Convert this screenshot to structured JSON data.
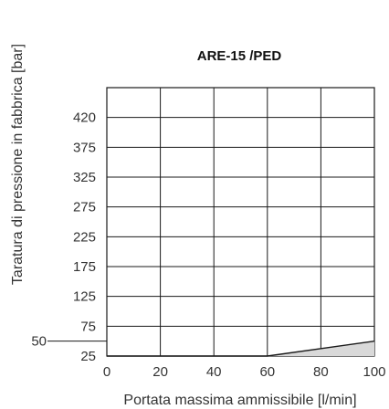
{
  "chart_data": {
    "type": "area",
    "title": "ARE-15 /PED",
    "xlabel": "Portata massima ammissibile [l/min]",
    "ylabel": "Taratura di pressione in fabbrica [bar]",
    "x_ticks": [
      "0",
      "20",
      "40",
      "60",
      "80",
      "100"
    ],
    "y_ticks": [
      "25",
      "75",
      "125",
      "175",
      "225",
      "275",
      "325",
      "375",
      "420"
    ],
    "extra_y_label": "50",
    "xlim": [
      0,
      100
    ],
    "grid": true,
    "legend": "none",
    "series": [
      {
        "x": [
          0,
          60,
          100
        ],
        "y": [
          25,
          25,
          50
        ],
        "fill_color": "#d9d9d9",
        "line_color": "#1a1a1a"
      }
    ]
  }
}
